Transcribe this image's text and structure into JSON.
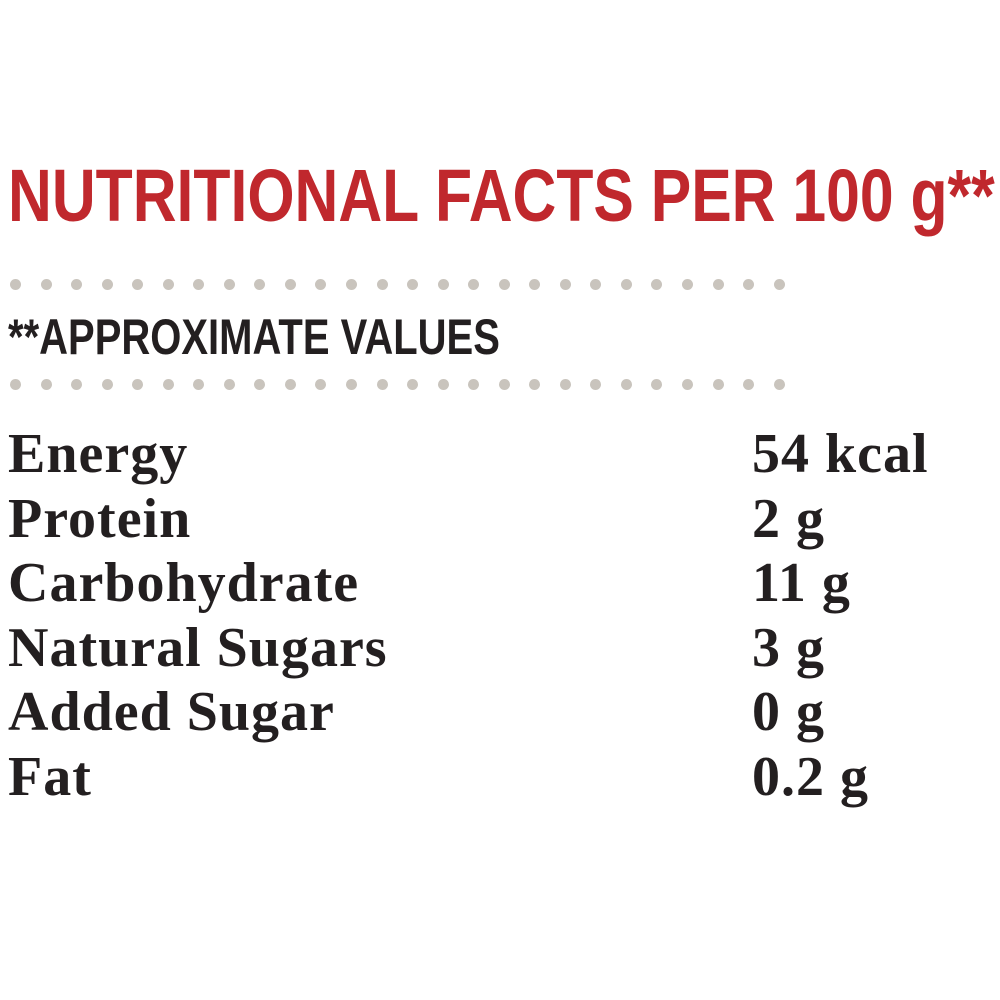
{
  "header": {
    "title": "NUTRITIONAL FACTS PER 100 g**",
    "subtitle": "**APPROXIMATE VALUES"
  },
  "colors": {
    "title": "#c0282d",
    "text": "#231f20",
    "dots": "#c9c4bd"
  },
  "nutrition": [
    {
      "label": "Energy",
      "value": "54 kcal"
    },
    {
      "label": "Protein",
      "value": "2 g"
    },
    {
      "label": "Carbohydrate",
      "value": "11 g"
    },
    {
      "label": "Natural Sugars",
      "value": "3 g"
    },
    {
      "label": "Added Sugar",
      "value": "0 g"
    },
    {
      "label": "Fat",
      "value": "0.2 g"
    }
  ]
}
